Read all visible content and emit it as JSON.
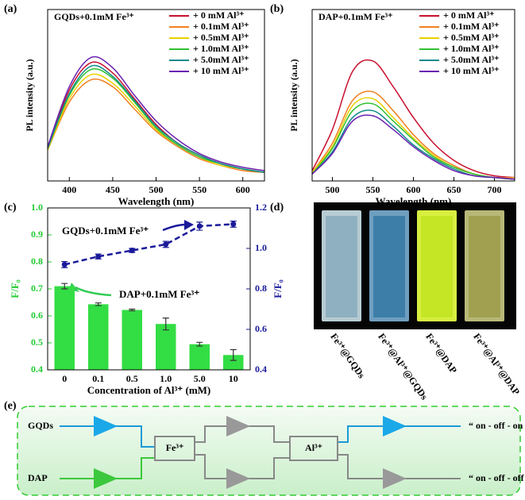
{
  "chart_data": [
    {
      "type": "line",
      "panel": "(a)",
      "title": "GQDs+0.1mM Fe³⁺",
      "xlabel": "Wavelength (nm)",
      "ylabel": "PL intensity (a.u.)",
      "x": [
        375,
        400,
        425,
        450,
        475,
        500,
        525,
        550,
        575,
        600,
        625
      ],
      "xlim": [
        375,
        625
      ],
      "xticks": [
        400,
        450,
        500,
        550,
        600
      ],
      "ylim": [
        0,
        100
      ],
      "series": [
        {
          "name": "+ 0 mM Al³⁺",
          "color": "#c8102e",
          "values": [
            19,
            53,
            69,
            63,
            48,
            33,
            22,
            15,
            10,
            7,
            5
          ]
        },
        {
          "name": "+ 0.1mM Al³⁺",
          "color": "#f08020",
          "values": [
            18,
            46,
            59,
            55,
            42,
            29,
            20,
            13,
            9,
            6,
            5
          ]
        },
        {
          "name": "+ 0.5mM Al³⁺",
          "color": "#e8d000",
          "values": [
            18,
            48,
            62,
            57,
            44,
            30,
            21,
            14,
            9,
            7,
            5
          ]
        },
        {
          "name": "+ 1.0mM Al³⁺",
          "color": "#30c030",
          "values": [
            19,
            50,
            65,
            60,
            46,
            31,
            21,
            14,
            10,
            7,
            5
          ]
        },
        {
          "name": "+ 5.0mM Al³⁺",
          "color": "#108a8a",
          "values": [
            19,
            51,
            67,
            61,
            47,
            32,
            22,
            15,
            10,
            7,
            5
          ]
        },
        {
          "name": "+ 10 mM Al³⁺",
          "color": "#6a1fb0",
          "values": [
            20,
            55,
            72,
            66,
            50,
            35,
            24,
            16,
            11,
            8,
            6
          ]
        }
      ]
    },
    {
      "type": "line",
      "panel": "(b)",
      "title": "DAP+0.1mM Fe³⁺",
      "xlabel": "Wavelength (nm)",
      "ylabel": "PL intensity (a.u.)",
      "x": [
        475,
        500,
        525,
        550,
        575,
        600,
        625,
        650,
        675,
        700,
        725
      ],
      "xlim": [
        475,
        725
      ],
      "xticks": [
        500,
        550,
        600,
        650,
        700
      ],
      "ylim": [
        0,
        100
      ],
      "series": [
        {
          "name": "+ 0 mM Al³⁺",
          "color": "#c8102e",
          "values": [
            6,
            30,
            64,
            70,
            55,
            37,
            22,
            12,
            6,
            3,
            2
          ]
        },
        {
          "name": "+ 0.1mM Al³⁺",
          "color": "#f08020",
          "values": [
            5,
            22,
            47,
            52,
            41,
            27,
            16,
            9,
            4,
            2,
            2
          ]
        },
        {
          "name": "+ 0.5mM Al³⁺",
          "color": "#e8d000",
          "values": [
            5,
            20,
            44,
            48,
            37,
            25,
            15,
            8,
            4,
            2,
            1
          ]
        },
        {
          "name": "+ 1.0mM Al³⁺",
          "color": "#30c030",
          "values": [
            4,
            19,
            41,
            45,
            35,
            24,
            14,
            8,
            4,
            2,
            1
          ]
        },
        {
          "name": "+ 5.0mM Al³⁺",
          "color": "#108a8a",
          "values": [
            4,
            17,
            37,
            41,
            32,
            21,
            13,
            7,
            3,
            2,
            1
          ]
        },
        {
          "name": "+ 10 mM Al³⁺",
          "color": "#6a1fb0",
          "values": [
            4,
            16,
            35,
            38,
            30,
            20,
            12,
            6,
            3,
            2,
            1
          ]
        }
      ]
    },
    {
      "type": "bar",
      "panel": "(c)",
      "xlabel": "Concentration of Al³⁺ (mM)",
      "ylabel": "F/F₀",
      "y2label": "F/F₀",
      "categories": [
        "0",
        "0.1",
        "0.5",
        "1.0",
        "5.0",
        "10"
      ],
      "ylim": [
        0.4,
        1.0
      ],
      "yticks": [
        0.4,
        0.5,
        0.6,
        0.7,
        0.8,
        0.9,
        {
          "value": 1.0,
          "label": "1.0"
        }
      ],
      "ycolor": "#22cc33",
      "y2lim": [
        0.4,
        1.2
      ],
      "y2ticks": [
        0.4,
        0.6,
        0.8,
        {
          "value": 1.0,
          "label": "1.0"
        },
        1.2
      ],
      "y2color": "#1a1a9a",
      "series": [
        {
          "name": "DAP+0.1mM Fe³⁺",
          "type": "bar",
          "color": "#33dd44",
          "values": [
            0.71,
            0.643,
            0.622,
            0.57,
            0.495,
            0.455
          ],
          "errors": [
            0.01,
            0.005,
            0.003,
            0.022,
            0.007,
            0.02
          ]
        },
        {
          "name": "GQDs+0.1mM Fe³⁺",
          "type": "line",
          "axis": "y2",
          "color": "#1a1a9a",
          "values": [
            0.92,
            0.96,
            0.99,
            1.02,
            1.11,
            1.12
          ],
          "errors": [
            0.015,
            0.012,
            0.01,
            0.015,
            0.02,
            0.015
          ]
        }
      ]
    }
  ],
  "photo": {
    "panel": "(d)",
    "labels": [
      "Fe³⁺@GQDs",
      "Fe³⁺@Al³⁺@GQDs",
      "Fe³⁺@DAP",
      "Fe³⁺@Al³⁺@DAP"
    ]
  },
  "diagram": {
    "panel": "(e)",
    "inputs": [
      "GQDs",
      "DAP"
    ],
    "gates": [
      "Fe³⁺",
      "Al³⁺"
    ],
    "outputs": [
      "“ on - off - on ”",
      "“ on - off - off ”"
    ]
  }
}
